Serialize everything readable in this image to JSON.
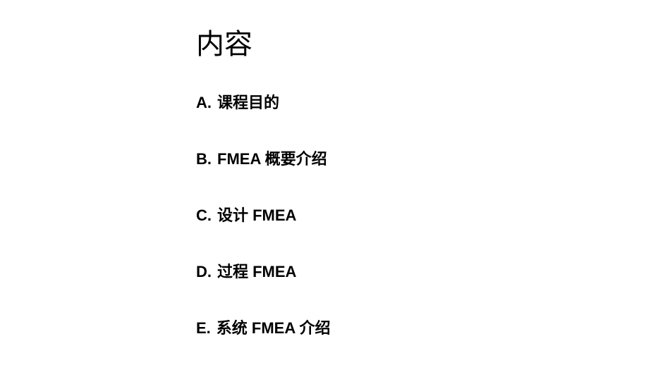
{
  "title": "内容",
  "items": [
    {
      "marker": "A.",
      "text": "课程目的"
    },
    {
      "marker": "B.",
      "text": "FMEA 概要介绍"
    },
    {
      "marker": "C.",
      "text": "设计 FMEA"
    },
    {
      "marker": "D.",
      "text": "过程 FMEA"
    },
    {
      "marker": "E.",
      "text": "系统 FMEA 介绍"
    }
  ]
}
